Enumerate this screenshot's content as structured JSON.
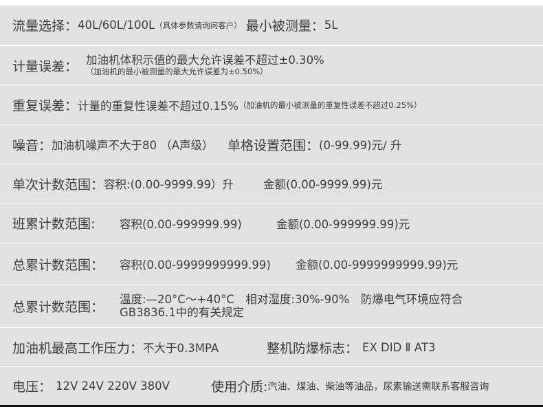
{
  "rows": [
    {
      "label": "流量选择：",
      "value": "40L/60L/100L",
      "note": "（具体参数请询问客户）",
      "label2": "最小被测量：",
      "value2": "5L"
    },
    {
      "label": "计量误差：",
      "value": "加油机体积示值的最大允许误差不超过±0.30%",
      "note": "（加油机的最小被测量的最大允许误差为±0.50%）"
    },
    {
      "label": "重复误差：",
      "value": "计量的重复性误差不超过0.15%",
      "note": "（加油机的最小被测量的重复性误差不超过0.25%）"
    },
    {
      "label": "噪音：",
      "value": "加油机噪声不大于80 （A声级）",
      "label2": "单格设置范围：",
      "value2": "(0-99.99)元/ 升"
    },
    {
      "label": "单次计数范围：",
      "value": "容积:(0.00-9999.99）升",
      "value2": "金额(0.00-9999.99)元"
    },
    {
      "label": "班累计数范围:",
      "value": "容积(0.00-999999.99)",
      "value2": "金额(0.00-999999.99)元"
    },
    {
      "label": "总累计数范围：",
      "value": "容积(0.00-9999999999.99)",
      "value2": "金额(0.00-9999999999.99)元"
    },
    {
      "label": "总累计数范围：",
      "value": "温度:—20°C～+40°C　相对湿度:30%-90%　防爆电气环境应符合",
      "value_line2": "GB3836.1中的有关规定"
    },
    {
      "label": "加油机最高工作压力：",
      "value": "不大于0.3MPA",
      "label2": "整机防爆标志：",
      "value2": "EX DID Ⅱ AT3"
    },
    {
      "label": "电压：",
      "value": "12V  24V 220V 380V",
      "label2": "使用介质:",
      "value2": "汽油、煤油、柴油等油品，尿素输送需联系客服咨询"
    }
  ]
}
